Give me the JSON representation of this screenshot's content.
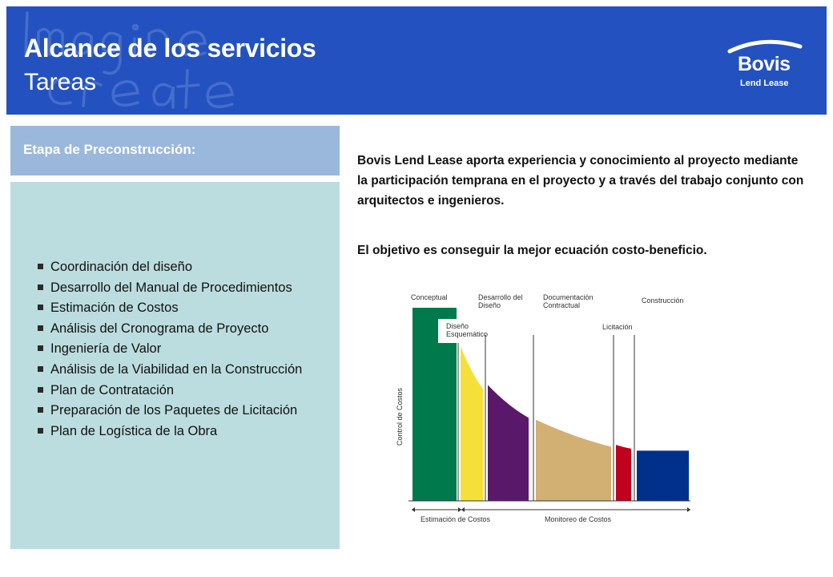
{
  "header": {
    "title": "Alcance de los servicios",
    "subtitle": "Tareas",
    "background_color": "#2351c0",
    "watermark_text": "Imagine Create",
    "logo": {
      "name": "Bovis",
      "sub": "Lend Lease"
    }
  },
  "stage": {
    "title": "Etapa de Preconstrucción:",
    "color": "#9ab8db"
  },
  "tasks": {
    "panel_color": "#bcdde0",
    "items": [
      "Coordinación  del diseño",
      "Desarrollo del Manual de Procedimientos",
      "Estimación de Costos",
      "Análisis del Cronograma de Proyecto",
      "Ingeniería de Valor",
      "Análisis de la Viabilidad en la Construcción",
      "Plan de Contratación",
      "Preparación de los Paquetes de Licitación",
      "Plan de Logística de la Obra"
    ]
  },
  "content": {
    "intro": "Bovis Lend Lease aporta experiencia y conocimiento al proyecto mediante la participación temprana en el proyecto y a través del trabajo conjunto con arquitectos e ingenieros.",
    "goal": "El objetivo es conseguir la mejor ecuación costo-beneficio."
  },
  "chart_data": {
    "type": "area",
    "title": "",
    "xlabel": "",
    "ylabel": "Control de Costos",
    "ylim": [
      0,
      100
    ],
    "phases": [
      {
        "name": "Conceptual",
        "label_lines": [
          "Conceptual"
        ],
        "color": "#007a4c",
        "y_start": 100,
        "y_end": 100
      },
      {
        "name": "Diseño Esquemático",
        "label_lines": [
          "Diseño",
          "Esquemático"
        ],
        "color": "#f5e03a",
        "y_start": 80,
        "y_end": 58
      },
      {
        "name": "Desarrollo del Diseño",
        "label_lines": [
          "Desarrollo del",
          "Diseño"
        ],
        "color": "#5a186b",
        "y_start": 60,
        "y_end": 43
      },
      {
        "name": "Documentación Contractual",
        "label_lines": [
          "Documentación",
          "Contractual"
        ],
        "color": "#d2b073",
        "y_start": 42,
        "y_end": 28
      },
      {
        "name": "Licitación",
        "label_lines": [
          "Licitación"
        ],
        "color": "#c0001d",
        "y_start": 29,
        "y_end": 27
      },
      {
        "name": "Construcción",
        "label_lines": [
          "Construcción"
        ],
        "color": "#00308c",
        "y_start": 26,
        "y_end": 26
      }
    ],
    "bottom_labels": [
      "Estimación de Costos",
      "Monitoreo de Costos"
    ]
  }
}
